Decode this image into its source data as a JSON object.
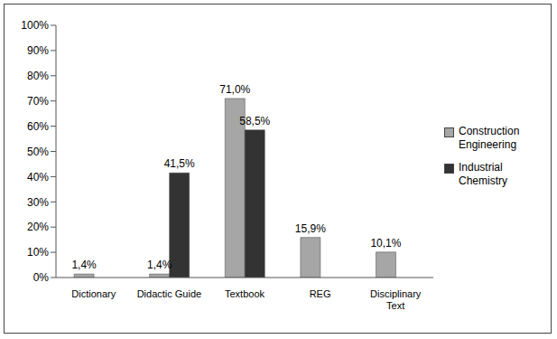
{
  "chart_data": {
    "type": "bar",
    "categories": [
      "Dictionary",
      "Didactic Guide",
      "Textbook",
      "REG",
      "Disciplinary Text"
    ],
    "series": [
      {
        "name": "Construction Engineering",
        "color": "#a6a6a6",
        "values": [
          1.4,
          1.4,
          71.0,
          15.9,
          10.1
        ],
        "value_labels": [
          "1,4%",
          "1,4%",
          "71,0%",
          "15,9%",
          "10,1%"
        ]
      },
      {
        "name": "Industrial Chemistry",
        "color": "#333333",
        "values": [
          null,
          41.5,
          58.5,
          null,
          null
        ],
        "value_labels": [
          null,
          "41,5%",
          "58,5%",
          null,
          null
        ]
      }
    ],
    "ylim": [
      0,
      100
    ],
    "yticks": [
      {
        "value": 0,
        "label": "0%"
      },
      {
        "value": 10,
        "label": "10%"
      },
      {
        "value": 20,
        "label": "20%"
      },
      {
        "value": 30,
        "label": "30%"
      },
      {
        "value": 40,
        "label": "40%"
      },
      {
        "value": 50,
        "label": "50%"
      },
      {
        "value": 60,
        "label": "60%"
      },
      {
        "value": 70,
        "label": "70%"
      },
      {
        "value": 80,
        "label": "80%"
      },
      {
        "value": 90,
        "label": "90%"
      },
      {
        "value": 100,
        "label": "100%"
      }
    ],
    "legend": "right",
    "data_labels": true,
    "grid": false
  }
}
